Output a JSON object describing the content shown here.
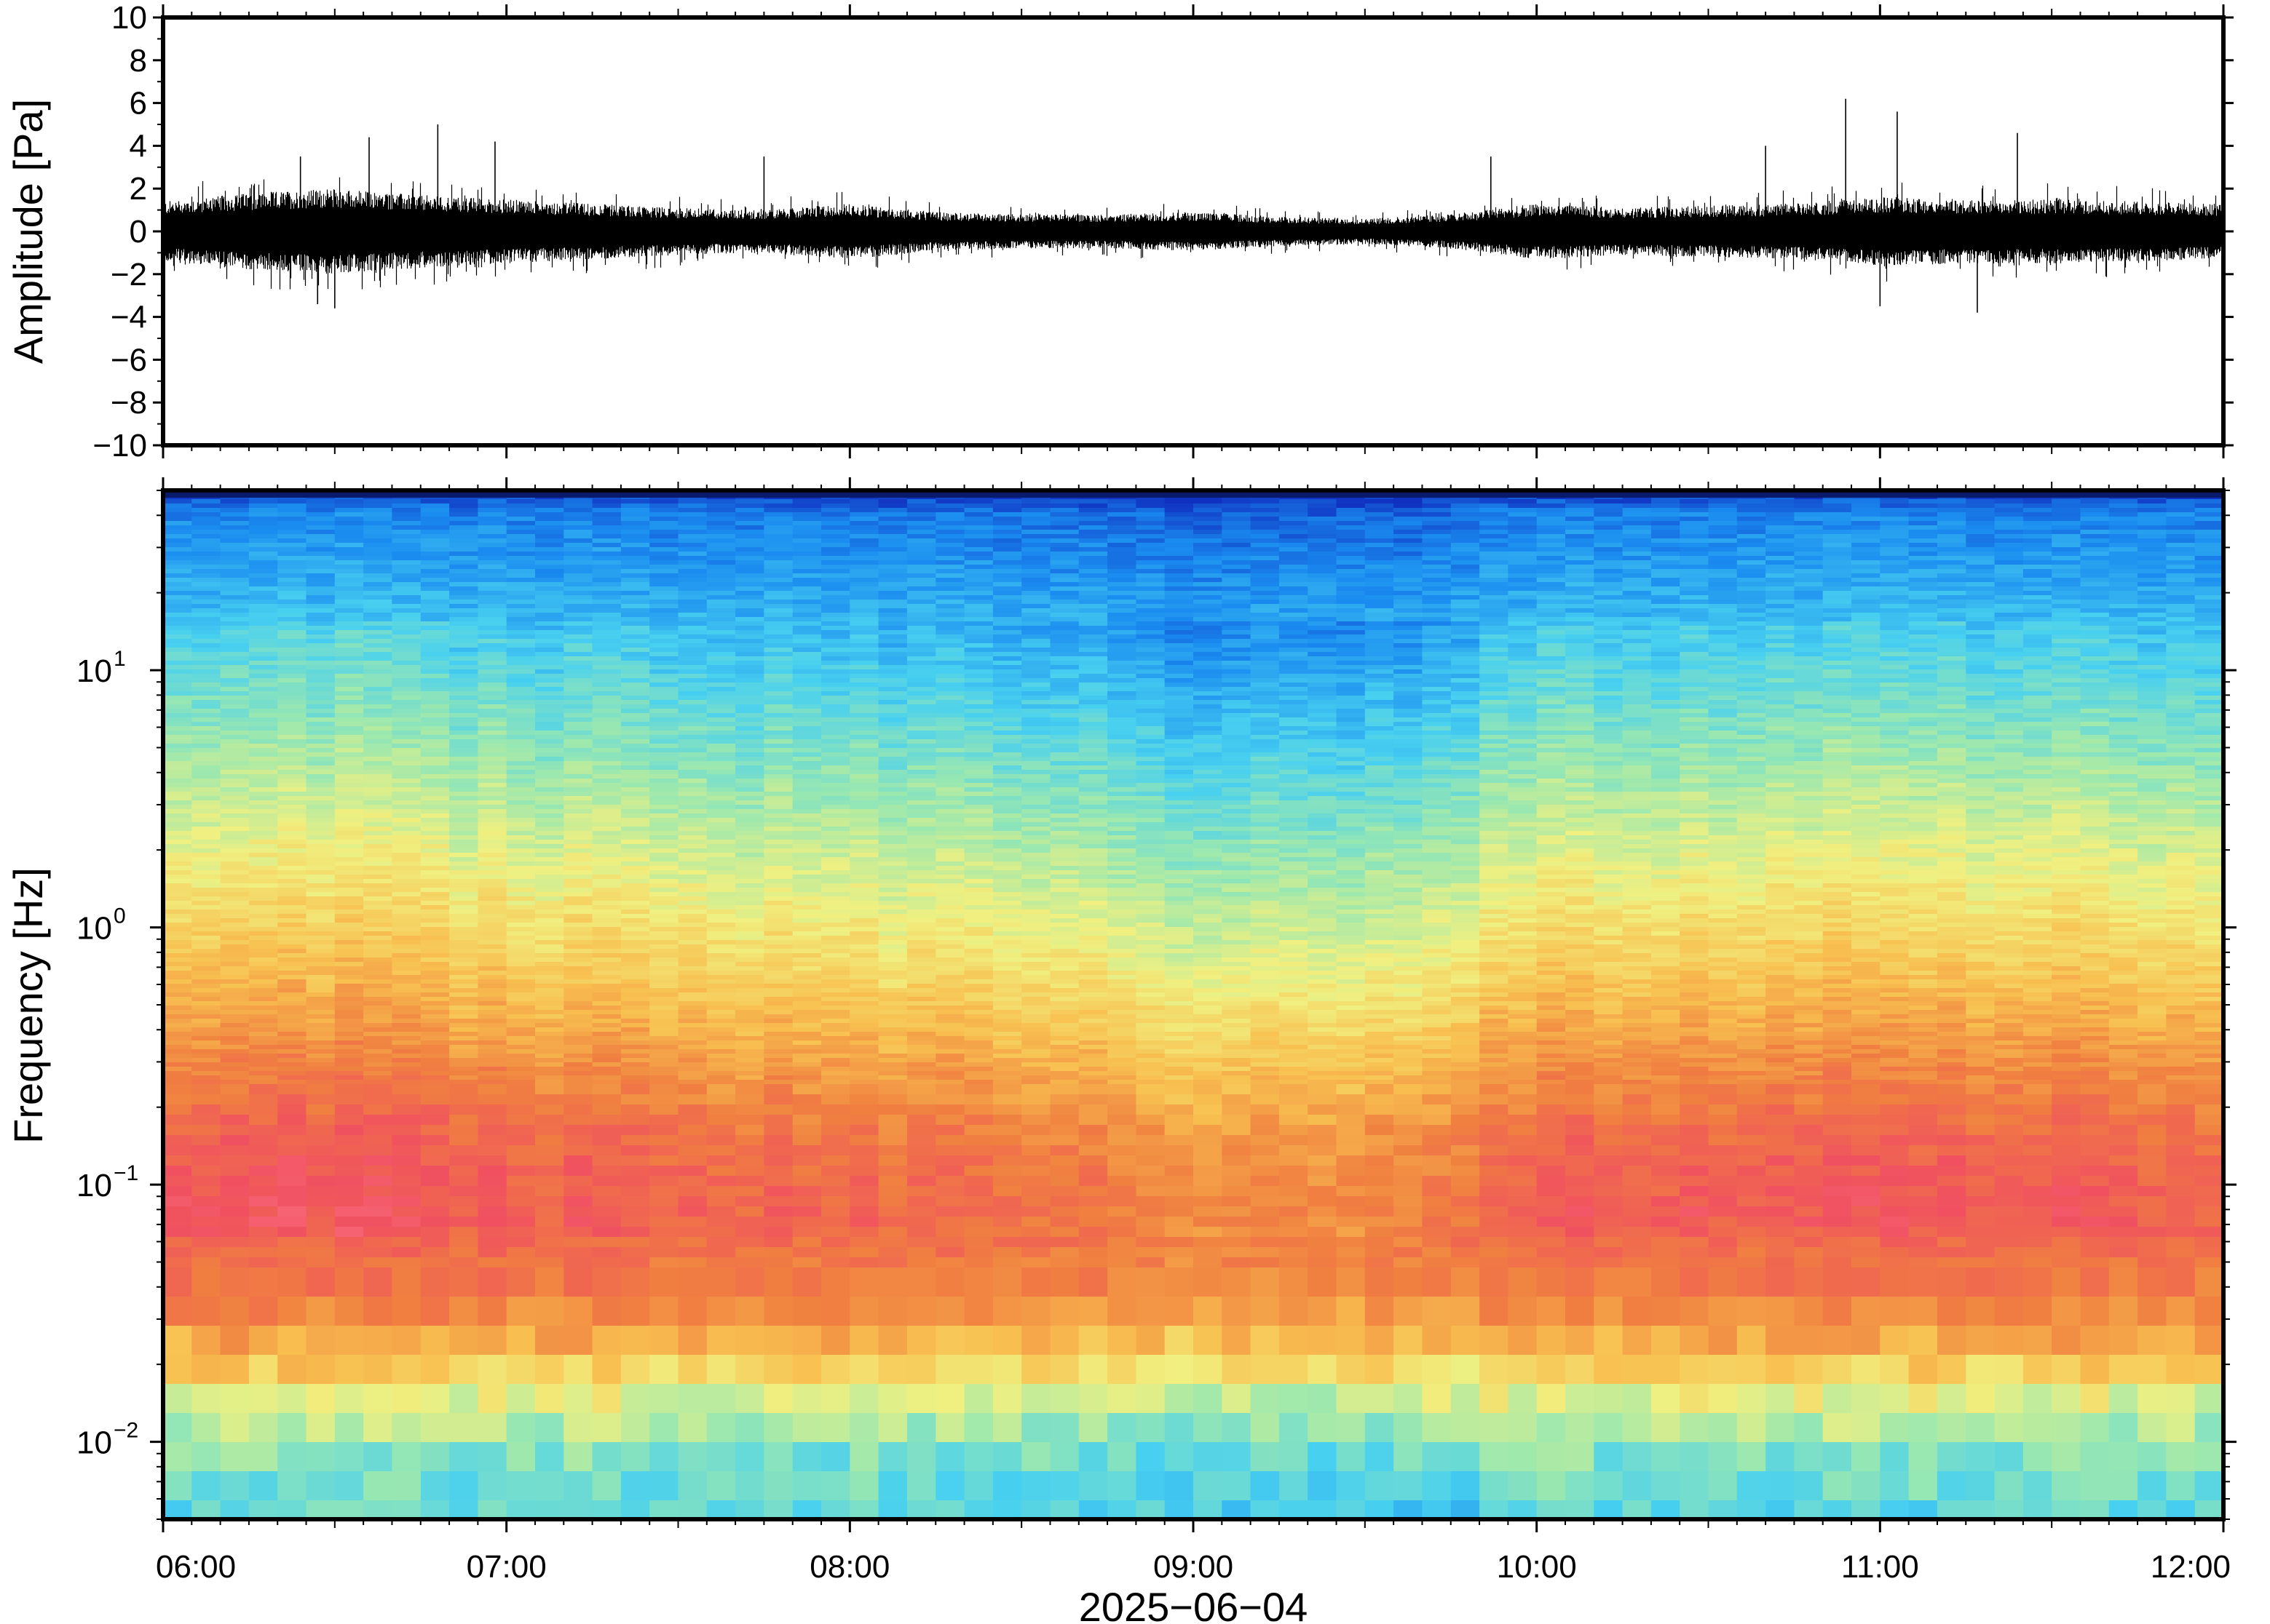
{
  "chart_data": [
    {
      "type": "line",
      "ylabel": "Amplitude [Pa]",
      "ylim": [
        -10,
        10
      ],
      "yticks": [
        "10",
        "8",
        "6",
        "4",
        "2",
        "0",
        "−2",
        "−4",
        "−6",
        "−8",
        "−10"
      ],
      "xlim": [
        "06:00",
        "12:00"
      ],
      "series": [
        {
          "color": "#000000",
          "envelope": {
            "times": [
              "06:00",
              "06:15",
              "06:30",
              "06:45",
              "07:00",
              "07:15",
              "07:30",
              "07:45",
              "08:00",
              "08:15",
              "08:30",
              "08:45",
              "09:00",
              "09:15",
              "09:30",
              "09:45",
              "10:00",
              "10:15",
              "10:30",
              "10:45",
              "11:00",
              "11:15",
              "11:30",
              "11:45",
              "12:00"
            ],
            "typical_max": [
              1.4,
              1.8,
              2.0,
              1.7,
              1.5,
              1.3,
              1.1,
              1.0,
              1.3,
              0.9,
              0.8,
              0.8,
              0.9,
              0.7,
              0.6,
              0.8,
              1.3,
              1.1,
              1.2,
              1.3,
              1.6,
              1.5,
              1.5,
              1.4,
              1.3
            ],
            "typical_min": [
              -1.4,
              -1.8,
              -2.0,
              -1.7,
              -1.5,
              -1.3,
              -1.1,
              -1.0,
              -1.3,
              -0.9,
              -0.8,
              -0.8,
              -0.9,
              -0.7,
              -0.6,
              -0.8,
              -1.3,
              -1.1,
              -1.2,
              -1.3,
              -1.6,
              -1.5,
              -1.5,
              -1.4,
              -1.3
            ],
            "peaks": [
              {
                "time": "06:24",
                "value": 3.5
              },
              {
                "time": "06:36",
                "value": 4.4
              },
              {
                "time": "06:48",
                "value": 5.0
              },
              {
                "time": "06:58",
                "value": 4.2
              },
              {
                "time": "06:27",
                "value": -3.4
              },
              {
                "time": "06:30",
                "value": -3.6
              },
              {
                "time": "07:45",
                "value": 3.5
              },
              {
                "time": "09:52",
                "value": 3.5
              },
              {
                "time": "10:40",
                "value": 4.0
              },
              {
                "time": "10:54",
                "value": 6.2
              },
              {
                "time": "11:03",
                "value": 5.6
              },
              {
                "time": "11:24",
                "value": 4.6
              },
              {
                "time": "11:00",
                "value": -3.5
              },
              {
                "time": "11:17",
                "value": -3.8
              }
            ]
          }
        }
      ]
    },
    {
      "type": "heatmap",
      "ylabel": "Frequency [Hz]",
      "xlabel": "2025−06−04",
      "yscale": "log",
      "ylim": [
        0.005,
        50
      ],
      "yticks": [
        {
          "base": "10",
          "exp": "1",
          "value": 10
        },
        {
          "base": "10",
          "exp": "0",
          "value": 1
        },
        {
          "base": "10",
          "exp": "−1",
          "value": 0.1
        },
        {
          "base": "10",
          "exp": "−2",
          "value": 0.01
        }
      ],
      "xticks": [
        "06:00",
        "07:00",
        "08:00",
        "09:00",
        "10:00",
        "11:00",
        "12:00"
      ],
      "xlim": [
        "06:00",
        "12:00"
      ],
      "colormap": [
        "#1030c0",
        "#1a8cf0",
        "#48d0f0",
        "#9ae8b0",
        "#f0f080",
        "#f8c050",
        "#f08040",
        "#f05060",
        "#ff8090"
      ],
      "time_blocks": 72,
      "power_level_by_time": {
        "times": [
          "06:00",
          "06:30",
          "07:00",
          "07:30",
          "08:00",
          "08:30",
          "09:00",
          "09:30",
          "10:00",
          "10:30",
          "11:00",
          "11:30",
          "12:00"
        ],
        "relative_level": [
          0.6,
          0.75,
          0.6,
          0.5,
          0.45,
          0.3,
          0.1,
          0.05,
          0.55,
          0.55,
          0.65,
          0.6,
          0.55
        ]
      }
    }
  ]
}
